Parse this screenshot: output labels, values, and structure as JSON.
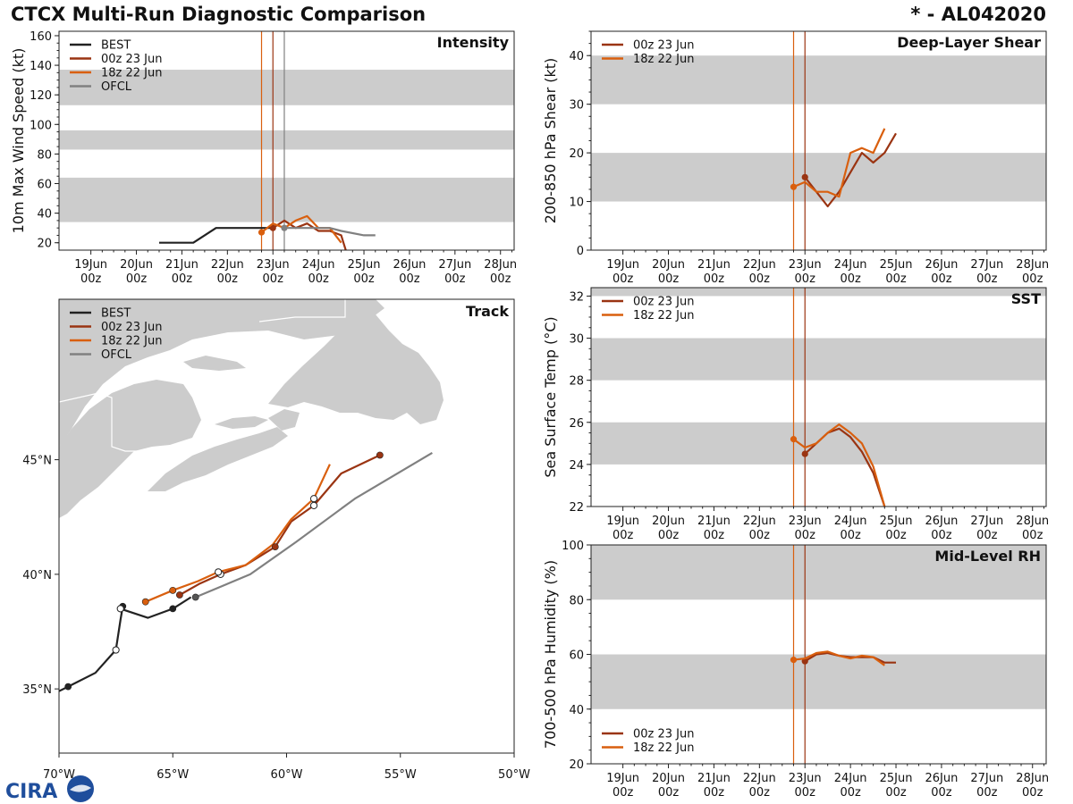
{
  "header": {
    "title": "CTCX Multi-Run Diagnostic Comparison",
    "storm": "* - AL042020"
  },
  "colors": {
    "best": "#222222",
    "run00": "#9a3412",
    "run18": "#d95f0e",
    "ofcl": "#808080",
    "band": "#cccccc",
    "land": "#cccccc"
  },
  "logo": {
    "text": "CIRA"
  },
  "time_ticks": {
    "days": [
      "19Jun",
      "20Jun",
      "21Jun",
      "22Jun",
      "23Jun",
      "24Jun",
      "25Jun",
      "26Jun",
      "27Jun",
      "28Jun"
    ],
    "hour": "00z",
    "day_offsets": [
      0,
      1,
      2,
      3,
      4,
      5,
      6,
      7,
      8,
      9
    ]
  },
  "chart_data": [
    {
      "id": "intensity",
      "type": "line",
      "title": "Intensity",
      "ylabel": "10m Max Wind Speed (kt)",
      "xlim_days": [
        -0.7,
        9.3
      ],
      "ylim": [
        15,
        163
      ],
      "yticks": [
        20,
        40,
        60,
        80,
        100,
        120,
        140,
        160
      ],
      "bands": [
        [
          34,
          64
        ],
        [
          83,
          96
        ],
        [
          113,
          137
        ]
      ],
      "vlines": [
        {
          "t": 3.75,
          "series": "run18"
        },
        {
          "t": 4.0,
          "series": "run00"
        },
        {
          "t": 4.25,
          "series": "ofcl"
        }
      ],
      "legend": [
        "BEST",
        "00z 23 Jun",
        "18z 22 Jun",
        "OFCL"
      ],
      "series": [
        {
          "name": "BEST",
          "key": "best",
          "t": [
            1.5,
            2.25,
            2.75,
            3.0,
            3.25,
            3.5,
            3.75,
            4.0
          ],
          "y": [
            20,
            20,
            30,
            30,
            30,
            30,
            30,
            30
          ],
          "markers": []
        },
        {
          "name": "00z 23 Jun",
          "key": "run00",
          "t": [
            4.0,
            4.25,
            4.5,
            4.75,
            5.0,
            5.25,
            5.5,
            5.55,
            5.6
          ],
          "y": [
            30,
            35,
            30,
            33,
            28,
            28,
            25,
            20,
            15
          ],
          "markers": [
            0
          ]
        },
        {
          "name": "18z 22 Jun",
          "key": "run18",
          "t": [
            3.75,
            4.0,
            4.25,
            4.5,
            4.75,
            5.0,
            5.25,
            5.5
          ],
          "y": [
            27,
            33,
            30,
            35,
            38,
            30,
            30,
            20
          ],
          "markers": [
            0
          ]
        },
        {
          "name": "OFCL",
          "key": "ofcl",
          "t": [
            4.25,
            4.5,
            4.75,
            5.0,
            5.25,
            5.5,
            6.0,
            6.25
          ],
          "y": [
            30,
            30,
            30,
            30,
            30,
            28,
            25,
            25
          ],
          "markers": [
            0
          ]
        }
      ]
    },
    {
      "id": "track",
      "type": "map",
      "title": "Track",
      "xlim": [
        -70,
        -50
      ],
      "ylim": [
        32.2,
        52.0
      ],
      "xticks": [
        -70,
        -65,
        -60,
        -55,
        -50
      ],
      "xtick_labels": [
        "70°W",
        "65°W",
        "60°W",
        "55°W",
        "50°W"
      ],
      "yticks": [
        35,
        40,
        45
      ],
      "ytick_labels": [
        "35°N",
        "40°N",
        "45°N"
      ],
      "legend": [
        "BEST",
        "00z 23 Jun",
        "18z 22 Jun",
        "OFCL"
      ],
      "series": [
        {
          "name": "BEST",
          "key": "best",
          "lon": [
            -70.0,
            -69.6,
            -68.4,
            -67.5,
            -67.3,
            -67.2,
            -67.3,
            -66.1,
            -65.0,
            -64.2
          ],
          "lat": [
            34.9,
            35.1,
            35.7,
            36.7,
            38.0,
            38.6,
            38.5,
            38.1,
            38.5,
            39.0
          ],
          "dots": [
            {
              "i": 1,
              "fill": "solid"
            },
            {
              "i": 3,
              "fill": "hollow"
            },
            {
              "i": 5,
              "fill": "solid"
            },
            {
              "i": 6,
              "fill": "hollow"
            },
            {
              "i": 8,
              "fill": "solid"
            }
          ]
        },
        {
          "name": "00z 23 Jun",
          "key": "run00",
          "lon": [
            -64.7,
            -63.8,
            -62.9,
            -61.8,
            -60.5,
            -59.8,
            -58.8,
            -57.6,
            -55.9
          ],
          "lat": [
            39.1,
            39.6,
            40.0,
            40.4,
            41.2,
            42.3,
            43.0,
            44.4,
            45.2
          ],
          "dots": [
            {
              "i": 0,
              "fill": "solid"
            },
            {
              "i": 2,
              "fill": "hollow"
            },
            {
              "i": 4,
              "fill": "solid"
            },
            {
              "i": 6,
              "fill": "hollow"
            },
            {
              "i": 8,
              "fill": "solid"
            }
          ]
        },
        {
          "name": "18z 22 Jun",
          "key": "run18",
          "lon": [
            -66.2,
            -65.0,
            -63.9,
            -63.0,
            -61.8,
            -60.6,
            -59.8,
            -58.8,
            -58.1
          ],
          "lat": [
            38.8,
            39.3,
            39.7,
            40.1,
            40.4,
            41.3,
            42.4,
            43.3,
            44.8
          ],
          "dots": [
            {
              "i": 0,
              "fill": "solid"
            },
            {
              "i": 1,
              "fill": "solid"
            },
            {
              "i": 3,
              "fill": "hollow"
            },
            {
              "i": 7,
              "fill": "hollow"
            }
          ]
        },
        {
          "name": "OFCL",
          "key": "ofcl",
          "lon": [
            -64.0,
            -61.6,
            -59.6,
            -57.0,
            -53.6
          ],
          "lat": [
            39.0,
            40.0,
            41.4,
            43.3,
            45.3
          ],
          "dots": [
            {
              "i": 0,
              "fill": "solid"
            }
          ]
        }
      ]
    },
    {
      "id": "shear",
      "type": "line",
      "title": "Deep-Layer Shear",
      "ylabel": "200-850 hPa Shear (kt)",
      "xlim_days": [
        -0.7,
        9.3
      ],
      "ylim": [
        0,
        45
      ],
      "yticks": [
        0,
        10,
        20,
        30,
        40
      ],
      "bands": [
        [
          10,
          20
        ],
        [
          30,
          40
        ]
      ],
      "vlines": [
        {
          "t": 3.75,
          "series": "run18"
        },
        {
          "t": 4.0,
          "series": "run00"
        }
      ],
      "legend": [
        "00z 23 Jun",
        "18z 22 Jun"
      ],
      "series": [
        {
          "name": "00z 23 Jun",
          "key": "run00",
          "t": [
            4.0,
            4.25,
            4.5,
            4.75,
            5.0,
            5.25,
            5.5,
            5.75,
            6.0
          ],
          "y": [
            15,
            12,
            9,
            12,
            16,
            20,
            18,
            20,
            24
          ],
          "markers": [
            0
          ]
        },
        {
          "name": "18z 22 Jun",
          "key": "run18",
          "t": [
            3.75,
            4.0,
            4.25,
            4.5,
            4.75,
            5.0,
            5.25,
            5.5,
            5.75
          ],
          "y": [
            13,
            14,
            12,
            12,
            11,
            20,
            21,
            20,
            25
          ],
          "markers": [
            0
          ]
        }
      ]
    },
    {
      "id": "sst",
      "type": "line",
      "title": "SST",
      "ylabel": "Sea Surface Temp (°C)",
      "xlim_days": [
        -0.7,
        9.3
      ],
      "ylim": [
        22,
        32.4
      ],
      "yticks": [
        22,
        24,
        26,
        28,
        30,
        32
      ],
      "bands": [
        [
          24,
          26
        ],
        [
          28,
          30
        ],
        [
          32,
          33
        ]
      ],
      "vlines": [
        {
          "t": 3.75,
          "series": "run18"
        },
        {
          "t": 4.0,
          "series": "run00"
        }
      ],
      "legend": [
        "00z 23 Jun",
        "18z 22 Jun"
      ],
      "series": [
        {
          "name": "00z 23 Jun",
          "key": "run00",
          "t": [
            4.0,
            4.25,
            4.5,
            4.75,
            5.0,
            5.25,
            5.5,
            5.75
          ],
          "y": [
            24.5,
            25.0,
            25.5,
            25.7,
            25.3,
            24.6,
            23.6,
            22.0
          ],
          "markers": [
            0
          ]
        },
        {
          "name": "18z 22 Jun",
          "key": "run18",
          "t": [
            3.75,
            4.0,
            4.25,
            4.5,
            4.75,
            5.0,
            5.25,
            5.5,
            5.75
          ],
          "y": [
            25.2,
            24.8,
            25.0,
            25.5,
            25.9,
            25.5,
            25.0,
            23.9,
            22.0
          ],
          "markers": [
            0
          ]
        }
      ]
    },
    {
      "id": "rh",
      "type": "line",
      "title": "Mid-Level RH",
      "ylabel": "700-500 hPa Humidity (%)",
      "xlim_days": [
        -0.7,
        9.3
      ],
      "ylim": [
        20,
        100
      ],
      "yticks": [
        20,
        40,
        60,
        80,
        100
      ],
      "bands": [
        [
          40,
          60
        ],
        [
          80,
          100
        ]
      ],
      "vlines": [
        {
          "t": 3.75,
          "series": "run18"
        },
        {
          "t": 4.0,
          "series": "run00"
        }
      ],
      "legend": [
        "00z 23 Jun",
        "18z 22 Jun"
      ],
      "series": [
        {
          "name": "00z 23 Jun",
          "key": "run00",
          "t": [
            4.0,
            4.25,
            4.5,
            4.75,
            5.0,
            5.25,
            5.5,
            5.75,
            6.0
          ],
          "y": [
            57.5,
            60.0,
            60.5,
            59.5,
            59.0,
            59.0,
            59.0,
            57.0,
            57.0
          ],
          "markers": [
            0
          ]
        },
        {
          "name": "18z 22 Jun",
          "key": "run18",
          "t": [
            3.75,
            4.0,
            4.25,
            4.5,
            4.75,
            5.0,
            5.25,
            5.5,
            5.75
          ],
          "y": [
            58.0,
            58.5,
            60.5,
            61.0,
            59.5,
            58.5,
            59.5,
            59.0,
            56.0
          ],
          "markers": [
            0
          ]
        }
      ]
    }
  ]
}
